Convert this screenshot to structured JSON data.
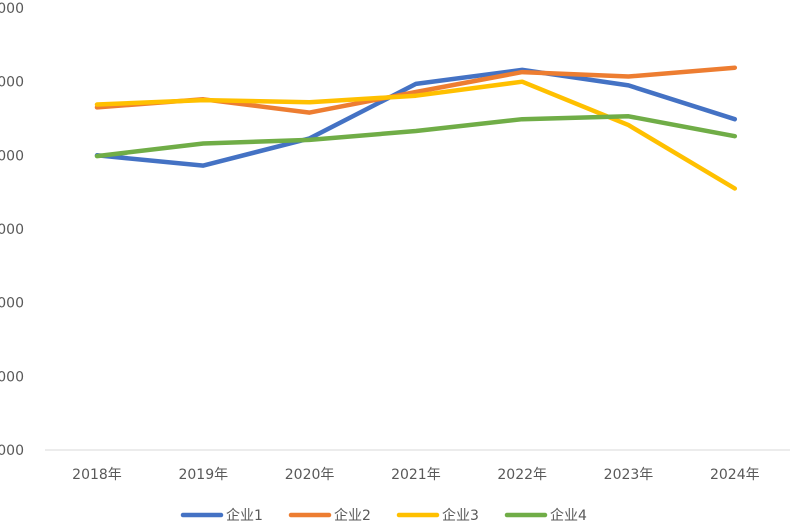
{
  "chart_data": {
    "type": "line",
    "title": "",
    "xlabel": "",
    "ylabel": "",
    "categories": [
      "2018年",
      "2019年",
      "2020年",
      "2021年",
      "2022年",
      "2023年",
      "2024年"
    ],
    "y_tick_labels": [
      "000",
      "000",
      "000",
      "000",
      "000",
      "000",
      "000"
    ],
    "ylim": [
      0,
      6000
    ],
    "grid": false,
    "legend_position": "bottom",
    "series": [
      {
        "name": "企业1",
        "color": "#4472C4",
        "values": [
          4000,
          3860,
          4230,
          4970,
          5160,
          4950,
          4490
        ]
      },
      {
        "name": "企业2",
        "color": "#ED7D31",
        "values": [
          4650,
          4760,
          4580,
          4860,
          5130,
          5070,
          5190
        ]
      },
      {
        "name": "企业3",
        "color": "#FFC000",
        "values": [
          4690,
          4750,
          4720,
          4810,
          5000,
          4410,
          3550
        ]
      },
      {
        "name": "企业4",
        "color": "#70AD47",
        "values": [
          3990,
          4160,
          4210,
          4330,
          4490,
          4530,
          4260
        ]
      }
    ]
  }
}
